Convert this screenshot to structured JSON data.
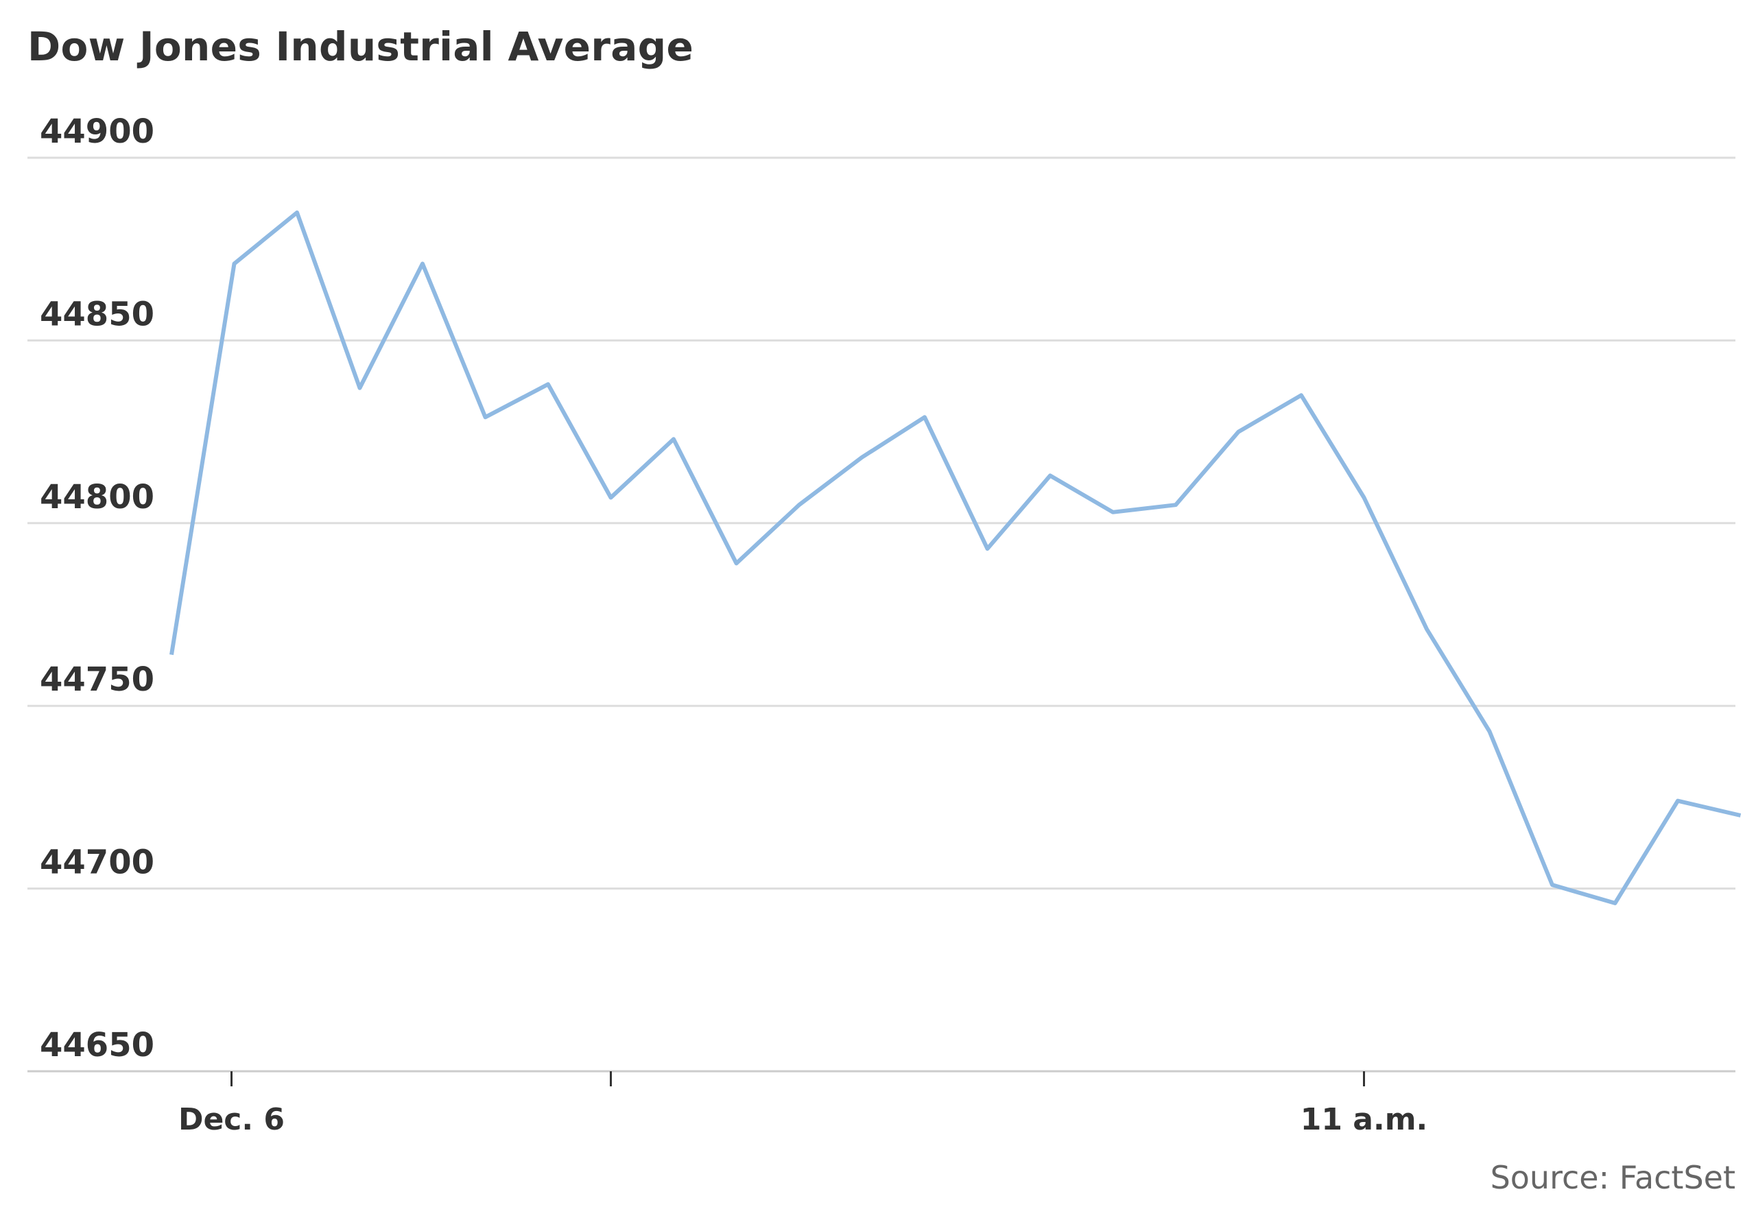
{
  "chart_data": {
    "type": "line",
    "title": "Dow Jones Industrial Average",
    "source": "Source: FactSet",
    "xlabel": "",
    "ylabel": "",
    "ylim": [
      44650,
      44900
    ],
    "y_ticks": [
      "44900",
      "44850",
      "44800",
      "44750",
      "44700",
      "44650"
    ],
    "x_ticks": [
      {
        "index": 1,
        "label": "Dec. 6"
      },
      {
        "index": 7,
        "label": ""
      },
      {
        "index": 19,
        "label": "11 a.m."
      }
    ],
    "grid": true,
    "line_color": "#8fb9e2",
    "series": [
      {
        "name": "",
        "values": [
          44764,
          44871,
          44885,
          44837,
          44871,
          44829,
          44838,
          44807,
          44823,
          44789,
          44805,
          44818,
          44829,
          44793,
          44813,
          44803,
          44805,
          44825,
          44835,
          44807,
          44771,
          44743,
          44701,
          44696,
          44724,
          44720
        ]
      }
    ]
  }
}
